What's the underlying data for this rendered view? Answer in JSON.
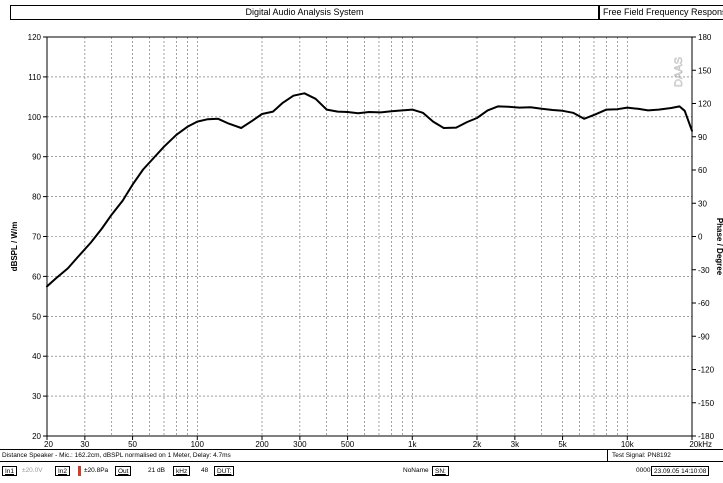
{
  "header": {
    "title": "Digital Audio Analysis System",
    "right_title": "Free Field Frequency Response"
  },
  "chart_data": {
    "type": "line",
    "title": "",
    "xlabel": "",
    "ylabel": "dBSPL / W/m",
    "y2label": "Phase / Degree",
    "x_scale": "log",
    "xlim": [
      20,
      20000
    ],
    "ylim": [
      20,
      120
    ],
    "y2lim": [
      -180,
      180
    ],
    "grid": true,
    "legend": "none",
    "watermark": "DAAS",
    "line_color": "#000000",
    "x_ticks": [
      {
        "value": 20,
        "label": "20"
      },
      {
        "value": 30,
        "label": "30"
      },
      {
        "value": 50,
        "label": "50"
      },
      {
        "value": 100,
        "label": "100"
      },
      {
        "value": 200,
        "label": "200"
      },
      {
        "value": 300,
        "label": "300"
      },
      {
        "value": 500,
        "label": "500"
      },
      {
        "value": 1000,
        "label": "1k"
      },
      {
        "value": 2000,
        "label": "2k"
      },
      {
        "value": 3000,
        "label": "3k"
      },
      {
        "value": 5000,
        "label": "5k"
      },
      {
        "value": 10000,
        "label": "10k"
      },
      {
        "value": 20000,
        "label": "20kHz"
      }
    ],
    "y_ticks": [
      "20",
      "30",
      "40",
      "50",
      "60",
      "70",
      "80",
      "90",
      "100",
      "110",
      "120"
    ],
    "y2_ticks": [
      "-180",
      "-150",
      "-120",
      "-90",
      "-60",
      "-30",
      "0",
      "30",
      "60",
      "90",
      "120",
      "150",
      "180"
    ],
    "series": [
      {
        "x": [
          20,
          22,
          25,
          28,
          32,
          36,
          40,
          45,
          50,
          56,
          63,
          70,
          80,
          90,
          100,
          112,
          125,
          140,
          160,
          180,
          200,
          225,
          250,
          280,
          315,
          355,
          400,
          450,
          500,
          560,
          630,
          710,
          800,
          900,
          1000,
          1120,
          1250,
          1400,
          1600,
          1800,
          2000,
          2240,
          2500,
          2800,
          3150,
          3550,
          4000,
          4500,
          5000,
          5600,
          6300,
          7100,
          8000,
          9000,
          10000,
          11200,
          12500,
          14000,
          16000,
          17500,
          18500,
          20000
        ],
        "y": [
          57.5,
          59.5,
          62,
          65,
          68.5,
          72,
          75.5,
          79,
          83,
          86.8,
          89.8,
          92.5,
          95.5,
          97.5,
          98.8,
          99.4,
          99.5,
          98.3,
          97.2,
          99,
          100.7,
          101.3,
          103.5,
          105.3,
          105.9,
          104.5,
          101.8,
          101.3,
          101.2,
          100.9,
          101.2,
          101.1,
          101.4,
          101.6,
          101.8,
          101,
          98.8,
          97.2,
          97.3,
          98.7,
          99.7,
          101.6,
          102.6,
          102.5,
          102.3,
          102.4,
          102,
          101.7,
          101.5,
          101,
          99.5,
          100.6,
          101.8,
          101.9,
          102.3,
          102,
          101.6,
          101.8,
          102.2,
          102.6,
          101.5,
          96.5
        ]
      }
    ]
  },
  "info": {
    "left_text": "Distance Speaker - Mic.: 162.2cm, dBSPL normalised on 1 Meter, Delay: 4.7ms",
    "right_text": "Test Signal: PN8192"
  },
  "status": {
    "in1": "In1",
    "in1_value": "±20.0V",
    "in2": "In2",
    "in2_value": "±20.8Pa",
    "out": "Out",
    "gain": "21 dB",
    "khz": "kHz",
    "num": "48",
    "dut": "DUT:",
    "noname": "NoName",
    "sn": "SN:",
    "code": "0000",
    "date": "23.09.05 14:10:08"
  }
}
